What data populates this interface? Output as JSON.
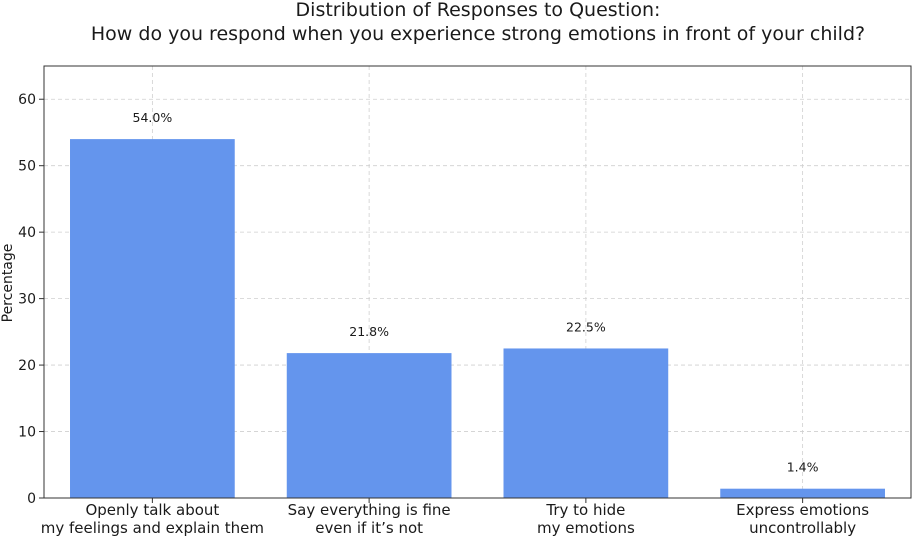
{
  "chart_data": {
    "type": "bar",
    "title": "Distribution of Responses to Question:",
    "subtitle": "How do you respond when you experience strong emotions in front of your child?",
    "xlabel": "",
    "ylabel": "Percentage",
    "categories": [
      [
        "Openly talk about",
        "my feelings and explain them"
      ],
      [
        "Say everything is fine",
        "even if it’s not"
      ],
      [
        "Try to hide",
        "my emotions"
      ],
      [
        "Express emotions",
        "uncontrollably"
      ]
    ],
    "values": [
      54.0,
      21.8,
      22.5,
      1.4
    ],
    "value_labels": [
      "54.0%",
      "21.8%",
      "22.5%",
      "1.4%"
    ],
    "ylim": [
      0,
      65
    ],
    "yticks": [
      0,
      10,
      20,
      30,
      40,
      50,
      60
    ],
    "ytick_labels": [
      "0",
      "10",
      "20",
      "30",
      "40",
      "50",
      "60"
    ],
    "grid": true,
    "bar_color": "#6495ED"
  }
}
